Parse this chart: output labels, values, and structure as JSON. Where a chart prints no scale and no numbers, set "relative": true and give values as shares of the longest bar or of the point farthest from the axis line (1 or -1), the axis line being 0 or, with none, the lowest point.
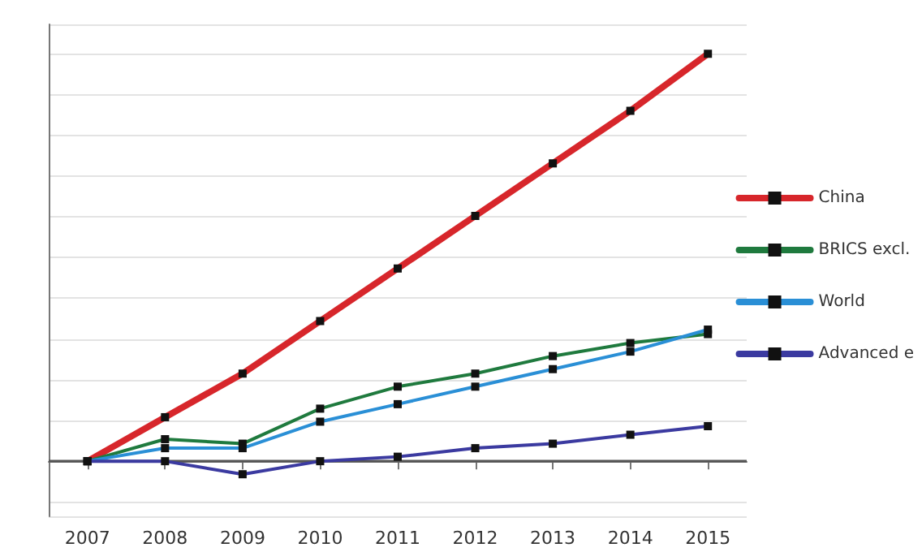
{
  "chart_data": {
    "type": "line",
    "relative": true,
    "categories": [
      "2007",
      "2008",
      "2009",
      "2010",
      "2011",
      "2012",
      "2013",
      "2014",
      "2015"
    ],
    "series": [
      {
        "name": "China",
        "color": "#d7262b",
        "values": [
          0,
          0.108,
          0.215,
          0.344,
          0.473,
          0.602,
          0.731,
          0.86,
          1
        ]
      },
      {
        "name": "BRICS excl.",
        "color": "#1f7a3e",
        "values": [
          0,
          0.054,
          0.043,
          0.129,
          0.183,
          0.215,
          0.258,
          0.29,
          0.312
        ]
      },
      {
        "name": "World",
        "color": "#2a8fd6",
        "values": [
          0,
          0.032,
          0.032,
          0.097,
          0.14,
          0.183,
          0.226,
          0.269,
          0.323
        ]
      },
      {
        "name": "Advanced e",
        "color": "#3b3aa0",
        "values": [
          0,
          0,
          -0.032,
          0,
          0.011,
          0.032,
          0.043,
          0.065,
          0.086
        ]
      }
    ],
    "ref_lines": [
      {
        "axis": "y",
        "value": 0,
        "color": "#555555"
      }
    ],
    "grid": "y",
    "legend": "right",
    "marker": "square",
    "line_style": "solid"
  }
}
